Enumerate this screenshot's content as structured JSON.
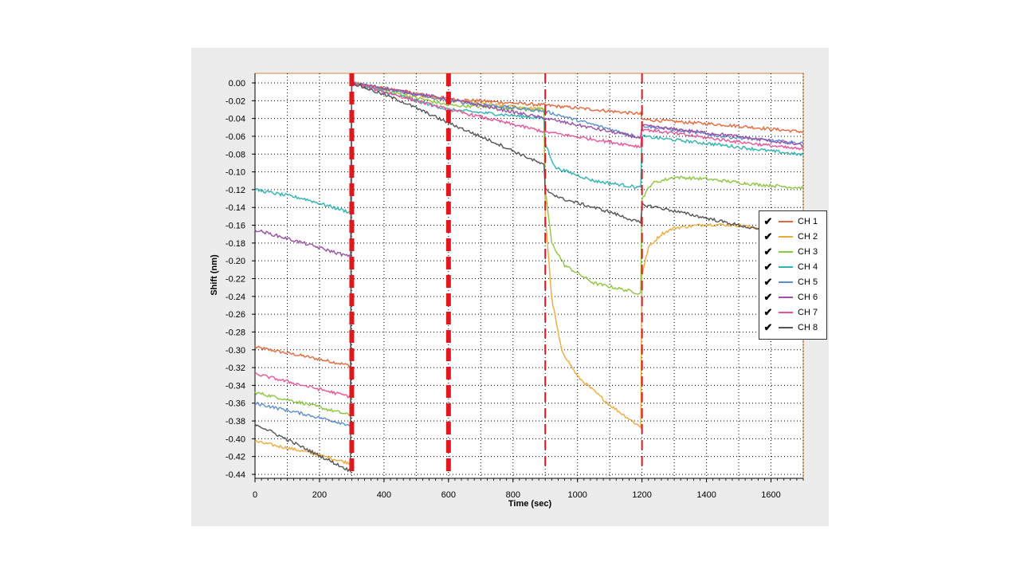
{
  "chart_data": {
    "type": "line",
    "xlabel": "Time (sec)",
    "ylabel": "Shift (nm)",
    "xlim": [
      0,
      1700
    ],
    "ylim": [
      -0.44,
      0.0
    ],
    "xticks": [
      "0",
      "200",
      "400",
      "600",
      "800",
      "1000",
      "1200",
      "1400",
      "1600"
    ],
    "yticks": [
      "0.00",
      "-0.02",
      "-0.04",
      "-0.06",
      "-0.08",
      "-0.10",
      "-0.12",
      "-0.14",
      "-0.16",
      "-0.18",
      "-0.20",
      "-0.22",
      "-0.24",
      "-0.26",
      "-0.28",
      "-0.30",
      "-0.32",
      "-0.34",
      "-0.36",
      "-0.38",
      "-0.40",
      "-0.42",
      "-0.44"
    ],
    "grid": true,
    "legend_position": "right",
    "step_markers": [
      {
        "x": 300,
        "style": "thick-dashed"
      },
      {
        "x": 600,
        "style": "thick-dashed"
      },
      {
        "x": 900,
        "style": "thin-dashed"
      },
      {
        "x": 1200,
        "style": "thin-dashed"
      }
    ],
    "series": [
      {
        "name": "CH 1",
        "color": "#e8663a",
        "x": [
          0,
          150,
          300,
          300,
          600,
          600,
          900,
          900,
          1200,
          1200,
          1450,
          1700
        ],
        "y": [
          -0.297,
          -0.307,
          -0.318,
          0.0,
          -0.018,
          -0.018,
          -0.025,
          -0.025,
          -0.035,
          -0.041,
          -0.047,
          -0.055
        ]
      },
      {
        "name": "CH 2",
        "color": "#f2a93b",
        "x": [
          0,
          150,
          300,
          300,
          600,
          600,
          900,
          900,
          920,
          950,
          1000,
          1100,
          1200,
          1200,
          1220,
          1260,
          1300,
          1400,
          1500,
          1600,
          1700
        ],
        "y": [
          -0.403,
          -0.414,
          -0.428,
          0.0,
          -0.02,
          -0.02,
          -0.03,
          -0.148,
          -0.242,
          -0.3,
          -0.33,
          -0.362,
          -0.388,
          -0.215,
          -0.185,
          -0.17,
          -0.163,
          -0.159,
          -0.16,
          -0.165,
          -0.172
        ]
      },
      {
        "name": "CH 3",
        "color": "#8dc63f",
        "x": [
          0,
          150,
          300,
          300,
          600,
          600,
          900,
          900,
          920,
          960,
          1050,
          1200,
          1200,
          1230,
          1300,
          1400,
          1550,
          1700
        ],
        "y": [
          -0.348,
          -0.36,
          -0.374,
          0.0,
          -0.025,
          -0.025,
          -0.03,
          -0.12,
          -0.18,
          -0.205,
          -0.225,
          -0.237,
          -0.13,
          -0.113,
          -0.106,
          -0.108,
          -0.114,
          -0.118
        ]
      },
      {
        "name": "CH 4",
        "color": "#2fb4b0",
        "x": [
          0,
          150,
          300,
          300,
          600,
          600,
          900,
          900,
          930,
          1050,
          1200,
          1200,
          1450,
          1700
        ],
        "y": [
          -0.12,
          -0.13,
          -0.146,
          0.0,
          -0.03,
          -0.03,
          -0.04,
          -0.068,
          -0.095,
          -0.11,
          -0.118,
          -0.06,
          -0.07,
          -0.081
        ]
      },
      {
        "name": "CH 5",
        "color": "#5b8fd0",
        "x": [
          0,
          150,
          300,
          300,
          600,
          600,
          900,
          900,
          1200,
          1200,
          1450,
          1700
        ],
        "y": [
          -0.36,
          -0.372,
          -0.385,
          0.0,
          -0.02,
          -0.02,
          -0.032,
          -0.032,
          -0.062,
          -0.048,
          -0.06,
          -0.068
        ]
      },
      {
        "name": "CH 6",
        "color": "#9b4fa6",
        "x": [
          0,
          150,
          300,
          300,
          600,
          600,
          900,
          900,
          1200,
          1200,
          1450,
          1700
        ],
        "y": [
          -0.165,
          -0.18,
          -0.196,
          0.0,
          -0.018,
          -0.018,
          -0.04,
          -0.04,
          -0.062,
          -0.048,
          -0.058,
          -0.07
        ]
      },
      {
        "name": "CH 7",
        "color": "#e8559a",
        "x": [
          0,
          150,
          300,
          300,
          600,
          600,
          900,
          900,
          1200,
          1200,
          1450,
          1700
        ],
        "y": [
          -0.327,
          -0.34,
          -0.353,
          0.0,
          -0.03,
          -0.03,
          -0.055,
          -0.055,
          -0.072,
          -0.052,
          -0.064,
          -0.075
        ]
      },
      {
        "name": "CH 8",
        "color": "#555555",
        "x": [
          0,
          150,
          300,
          300,
          450,
          600,
          600,
          750,
          900,
          900,
          950,
          1100,
          1200,
          1200,
          1250,
          1400,
          1550,
          1700
        ],
        "y": [
          -0.383,
          -0.41,
          -0.437,
          0.0,
          -0.02,
          -0.045,
          -0.045,
          -0.068,
          -0.093,
          -0.12,
          -0.13,
          -0.145,
          -0.158,
          -0.137,
          -0.14,
          -0.152,
          -0.164,
          -0.175
        ]
      }
    ]
  }
}
